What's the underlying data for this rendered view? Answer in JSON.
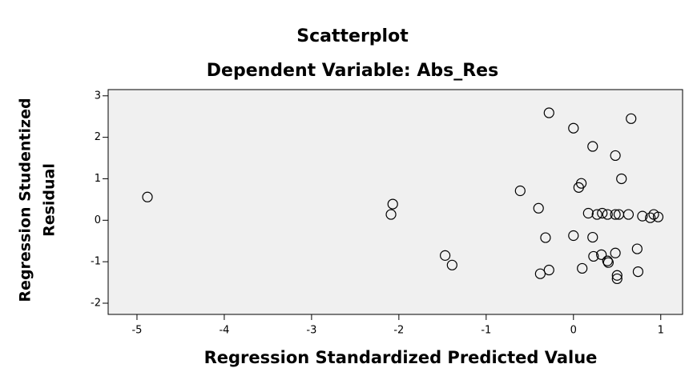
{
  "chart_data": {
    "type": "scatter",
    "title": "Scatterplot",
    "subtitle": "Dependent Variable: Abs_Res",
    "xlabel": "Regression Standardized Predicted Value",
    "ylabel": [
      "Regression Studentized",
      "Residual"
    ],
    "xlim": [
      -5.33,
      1.25
    ],
    "xticks": [
      -5,
      -4,
      -3,
      -2,
      -1,
      0,
      1
    ],
    "ylim": [
      -2.27,
      3.15
    ],
    "yticks": [
      -2,
      -1,
      0,
      1,
      2,
      3
    ],
    "marker": "open-circle",
    "color": "#000000",
    "background": "#f0f0f0",
    "series": [
      {
        "name": null,
        "x": [
          -4.88,
          -2.07,
          -2.09,
          -1.47,
          -1.39,
          -0.61,
          -0.4,
          -0.28,
          -0.32,
          -0.38,
          -0.28,
          0,
          0,
          0.06,
          0.09,
          0.1,
          0.22,
          0.22,
          0.23,
          0.32,
          0.39,
          0.4,
          0.48,
          0.17,
          0.27,
          0.33,
          0.39,
          0.48,
          0.52,
          0.63,
          0.48,
          0.55,
          0.66,
          0.73,
          0.74,
          0.5,
          0.5,
          0.79,
          0.88,
          0.92,
          0.97
        ],
        "values": [
          0.56,
          0.39,
          0.14,
          -0.85,
          -1.08,
          0.71,
          0.29,
          2.59,
          -0.42,
          -1.29,
          -1.2,
          2.22,
          -0.37,
          0.79,
          0.89,
          -1.16,
          1.78,
          -0.41,
          -0.87,
          -0.83,
          -0.98,
          -1.02,
          -0.79,
          0.17,
          0.14,
          0.17,
          0.14,
          0.14,
          0.14,
          0.14,
          1.56,
          1.0,
          2.45,
          -0.69,
          -1.24,
          -1.33,
          -1.41,
          0.1,
          0.06,
          0.14,
          0.08
        ]
      }
    ]
  }
}
